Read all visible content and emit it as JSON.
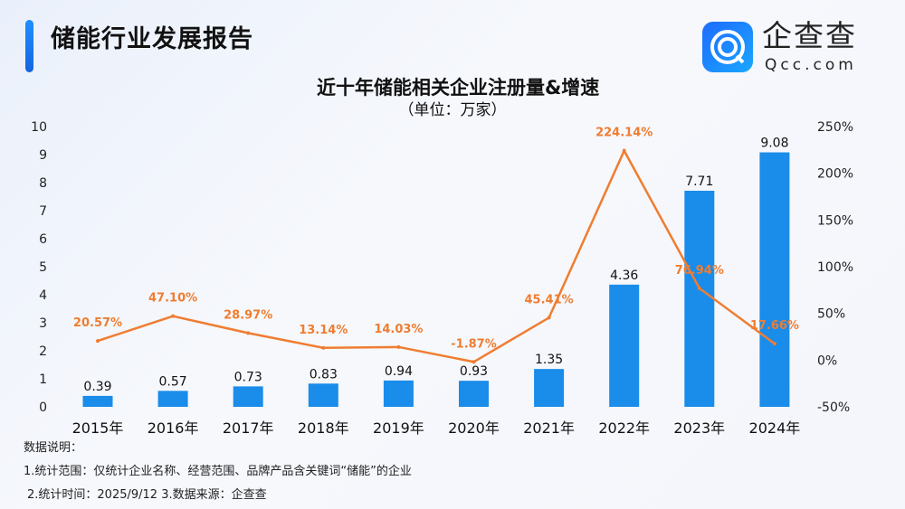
{
  "header": {
    "title": "储能行业发展报告",
    "brand": "企查查",
    "brand_en": "Qcc.com"
  },
  "chart_data": {
    "type": "bar+line",
    "title": "近十年储能相关企业注册量&增速",
    "subtitle": "（单位：万家）",
    "categories": [
      "2015年",
      "2016年",
      "2017年",
      "2018年",
      "2019年",
      "2020年",
      "2021年",
      "2022年",
      "2023年",
      "2024年"
    ],
    "series": [
      {
        "type": "bar",
        "axis": "left",
        "color": "#1a8cea",
        "values": [
          0.39,
          0.57,
          0.73,
          0.83,
          0.94,
          0.93,
          1.35,
          4.36,
          7.71,
          9.08
        ],
        "labels": [
          "0.39",
          "0.57",
          "0.73",
          "0.83",
          "0.94",
          "0.93",
          "1.35",
          "4.36",
          "7.71",
          "9.08"
        ]
      },
      {
        "type": "line",
        "axis": "right",
        "color": "#ef7d31",
        "values": [
          20.57,
          47.1,
          28.97,
          13.14,
          14.03,
          -1.87,
          45.41,
          224.14,
          76.94,
          17.66
        ],
        "labels": [
          "20.57%",
          "47.10%",
          "28.97%",
          "13.14%",
          "14.03%",
          "-1.87%",
          "45.41%",
          "224.14%",
          "76.94%",
          "17.66%"
        ]
      }
    ],
    "y_left": {
      "ylim": [
        0,
        10
      ],
      "ticks": [
        "0",
        "1",
        "2",
        "3",
        "4",
        "5",
        "6",
        "7",
        "8",
        "9",
        "10"
      ]
    },
    "y_right": {
      "ylim": [
        -50,
        250
      ],
      "ticks": [
        "-50%",
        "0%",
        "50%",
        "100%",
        "150%",
        "200%",
        "250%"
      ]
    },
    "grid": false,
    "legend": "none"
  },
  "notes": {
    "heading": "数据说明：",
    "line1": "1.统计范围：仅统计企业名称、经营范围、品牌产品含关键词“储能”的企业",
    "line2": "2.统计时间：2025/9/12  3.数据来源：企查查"
  }
}
